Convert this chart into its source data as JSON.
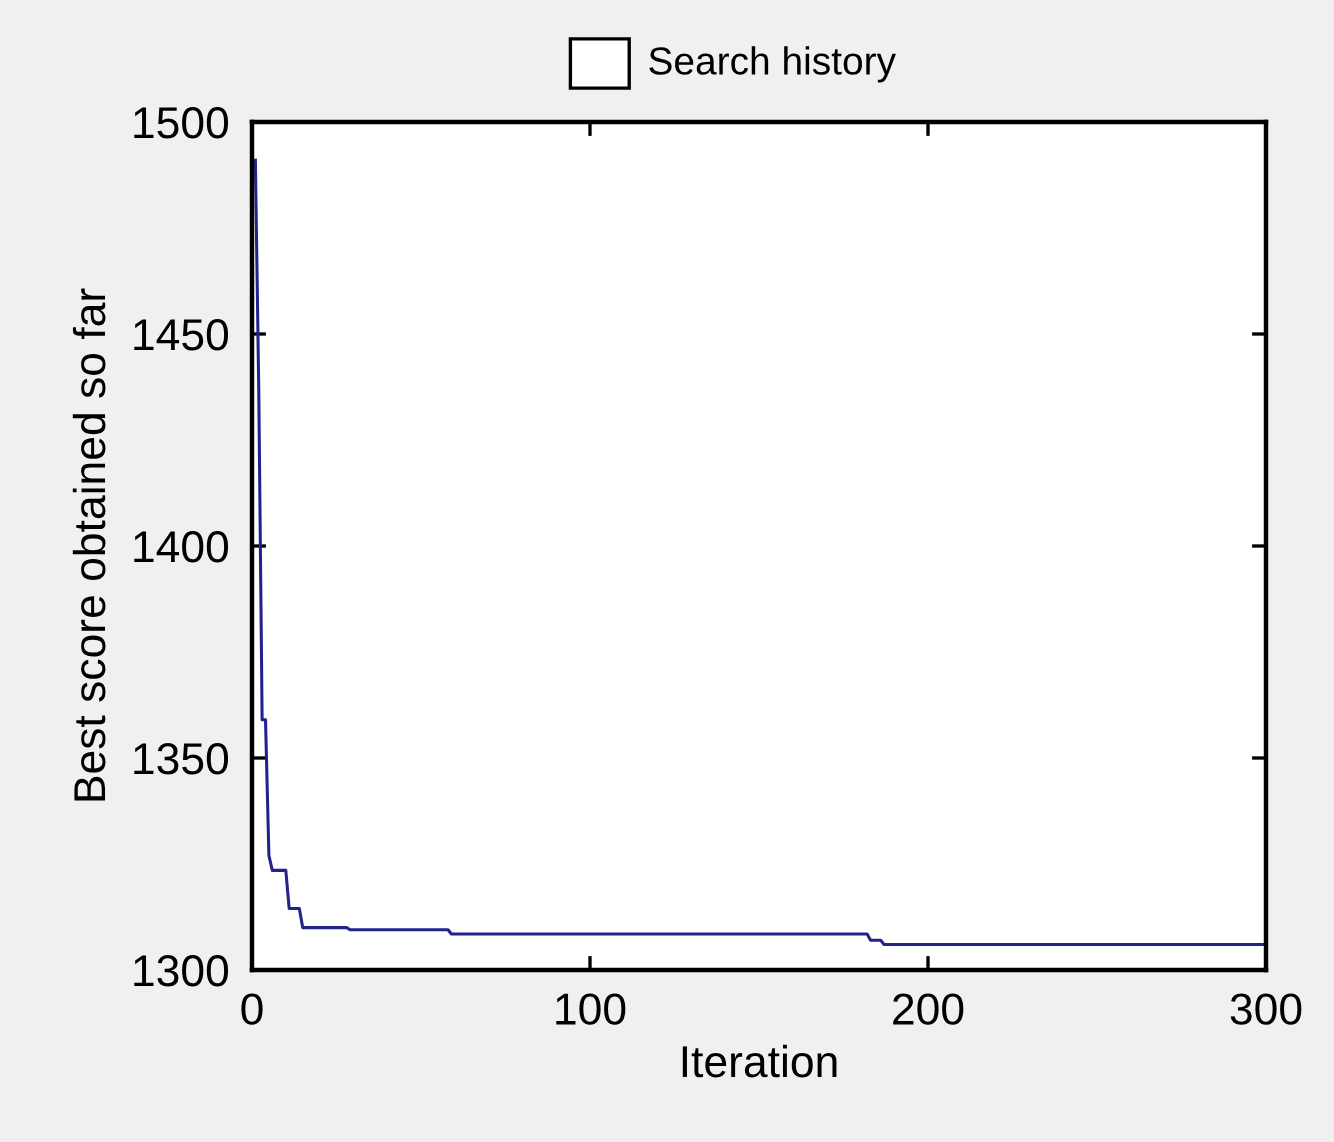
{
  "chart_data": {
    "type": "line",
    "title": "Search history",
    "xlabel": "Iteration",
    "ylabel": "Best score obtained so far",
    "series": [
      {
        "color": "#23238e",
        "x": [
          1,
          2,
          3,
          4,
          5,
          6,
          10,
          11,
          14,
          15,
          28,
          29,
          58,
          59,
          182,
          183,
          186,
          187,
          300
        ],
        "values": [
          1491,
          1437,
          1359,
          1359,
          1327,
          1323.5,
          1323.5,
          1314.5,
          1314.5,
          1310,
          1310,
          1309.5,
          1309.5,
          1308.5,
          1308.5,
          1307,
          1307,
          1306,
          1306
        ]
      }
    ],
    "xlim": [
      0,
      300
    ],
    "ylim": [
      1300,
      1500
    ],
    "xticks": [
      0,
      100,
      200,
      300
    ],
    "yticks": [
      1300,
      1350,
      1400,
      1450,
      1500
    ]
  }
}
